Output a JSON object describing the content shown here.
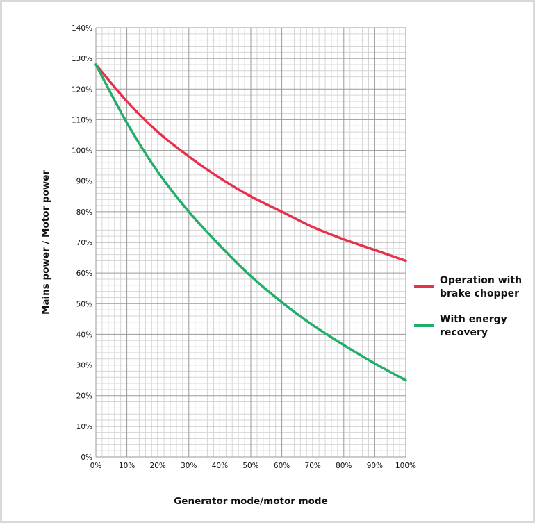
{
  "chart_data": {
    "type": "line",
    "xlabel": "Generator mode/motor mode",
    "ylabel": "Mains power / Motor power",
    "xlim": [
      0,
      100
    ],
    "ylim": [
      0,
      140
    ],
    "x_ticks": [
      "0%",
      "10%",
      "20%",
      "30%",
      "40%",
      "50%",
      "60%",
      "70%",
      "80%",
      "90%",
      "100%"
    ],
    "y_ticks": [
      "0%",
      "10%",
      "20%",
      "30%",
      "40%",
      "50%",
      "60%",
      "70%",
      "80%",
      "90%",
      "100%",
      "110%",
      "120%",
      "130%",
      "140%"
    ],
    "x_tick_values": [
      0,
      10,
      20,
      30,
      40,
      50,
      60,
      70,
      80,
      90,
      100
    ],
    "y_tick_values": [
      0,
      10,
      20,
      30,
      40,
      50,
      60,
      70,
      80,
      90,
      100,
      110,
      120,
      130,
      140
    ],
    "grid": "major and minor",
    "legend_position": "right",
    "x": [
      0,
      10,
      20,
      30,
      40,
      50,
      60,
      70,
      80,
      90,
      100
    ],
    "series": [
      {
        "name_lines": [
          "Operation with",
          "brake chopper"
        ],
        "color": "#e8304a",
        "values": [
          128,
          116,
          106,
          98,
          91,
          85,
          80,
          75,
          71,
          67.5,
          64
        ]
      },
      {
        "name_lines": [
          "With energy",
          "recovery"
        ],
        "color": "#22ad6b",
        "values": [
          128,
          109,
          93,
          80,
          69,
          59,
          50.5,
          43,
          36.5,
          30.5,
          25
        ]
      }
    ]
  }
}
